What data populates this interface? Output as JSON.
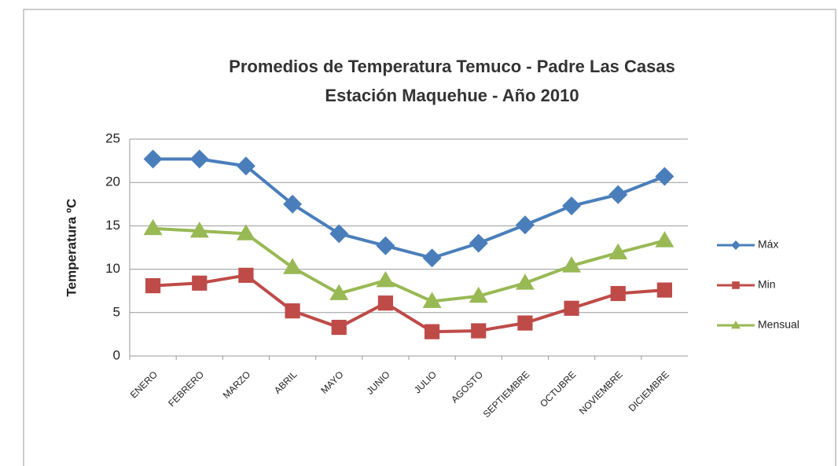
{
  "chart_data": {
    "type": "line",
    "title": "Promedios de Temperatura Temuco - Padre Las Casas",
    "subtitle": "Estación Maquehue - Año 2010",
    "ylabel": "Temperatura ºC",
    "categories": [
      "ENERO",
      "FEBRERO",
      "MARZO",
      "ABRIL",
      "MAYO",
      "JUNIO",
      "JULIO",
      "AGOSTO",
      "SEPTIEMBRE",
      "OCTUBRE",
      "NOVIEMBRE",
      "DICIEMBRE"
    ],
    "series": [
      {
        "name": "Máx",
        "color": "#4a7ebb",
        "marker": "diamond",
        "values": [
          22.7,
          22.7,
          21.9,
          17.5,
          14.1,
          12.7,
          11.3,
          13.0,
          15.1,
          17.3,
          18.6,
          20.7
        ]
      },
      {
        "name": "Min",
        "color": "#be4b48",
        "marker": "square",
        "values": [
          8.1,
          8.4,
          9.3,
          5.2,
          3.3,
          6.1,
          2.8,
          2.9,
          3.8,
          5.5,
          7.2,
          7.6
        ]
      },
      {
        "name": "Mensual",
        "color": "#98b954",
        "marker": "triangle",
        "values": [
          14.7,
          14.4,
          14.1,
          10.2,
          7.2,
          8.7,
          6.3,
          6.9,
          8.4,
          10.4,
          11.9,
          13.3
        ]
      }
    ],
    "ylim": [
      0,
      25
    ],
    "yticks": [
      0,
      5,
      10,
      15,
      20,
      25
    ],
    "grid": true,
    "legend": "right"
  }
}
